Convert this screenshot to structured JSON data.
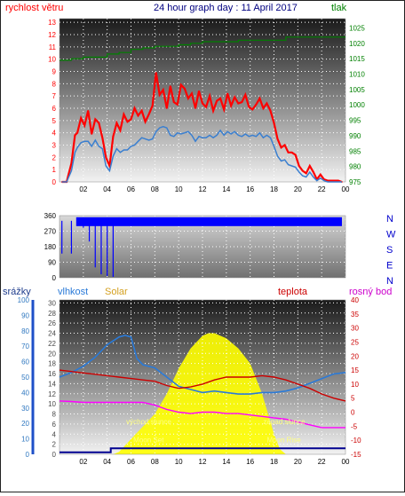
{
  "colors": {
    "wind": "#ff0000",
    "gust": "#3a7fd0",
    "pressure": "#008000",
    "direction": "#0000ff",
    "rain": "#1e50c8",
    "humidity": "#2a7ad8",
    "solar": "#ffff00",
    "temp": "#cc0000",
    "dew": "#ff00ff",
    "moon": "#000090",
    "axis_wind": "#ff0000",
    "axis_press": "#008000",
    "title": "#000080",
    "axis_rain": "#3078c0",
    "axis_solar": "#4a4a4a",
    "axis_temp": "#cc0000",
    "axis_dir": "#0000cc",
    "grid": "#ffffff"
  },
  "chart_data": [
    {
      "type": "line",
      "title": "24 hour graph day : 11 April 2017",
      "left_label": "rychlost větru",
      "right_label": "tlak",
      "xticks": [
        "02",
        "04",
        "06",
        "08",
        "10",
        "12",
        "14",
        "16",
        "18",
        "20",
        "22",
        "00"
      ],
      "yticks_left": [
        "0",
        "1",
        "2",
        "3",
        "4",
        "5",
        "6",
        "7",
        "8",
        "9",
        "10",
        "11",
        "12",
        "13"
      ],
      "yticks_right": [
        "975",
        "980",
        "985",
        "990",
        "995",
        "1000",
        "1005",
        "1010",
        "1015",
        "1020",
        "1025"
      ],
      "xlim": [
        0,
        24
      ],
      "ylim_left": [
        0,
        13.3
      ],
      "ylim_right": [
        975,
        1028
      ],
      "grid": true,
      "series": [
        {
          "name": "rychlost větru",
          "axis": "left",
          "x": [
            0.2,
            0.6,
            1.0,
            1.3,
            1.5,
            1.8,
            2.1,
            2.4,
            2.7,
            3.0,
            3.3,
            3.6,
            3.9,
            4.2,
            4.5,
            4.8,
            5.1,
            5.4,
            5.7,
            6.0,
            6.3,
            6.6,
            6.9,
            7.2,
            7.5,
            7.8,
            8.1,
            8.4,
            8.7,
            9.0,
            9.3,
            9.6,
            9.9,
            10.2,
            10.5,
            10.8,
            11.1,
            11.4,
            11.7,
            12.0,
            12.3,
            12.6,
            12.9,
            13.2,
            13.5,
            13.8,
            14.1,
            14.4,
            14.7,
            15.0,
            15.3,
            15.6,
            15.9,
            16.2,
            16.5,
            16.8,
            17.1,
            17.4,
            17.7,
            18.0,
            18.3,
            18.6,
            18.9,
            19.2,
            19.5,
            19.8,
            20.1,
            20.4,
            20.7,
            21.0,
            21.3,
            21.6,
            21.9,
            22.2,
            22.5,
            22.8,
            23.1,
            23.4,
            23.7
          ],
          "y": [
            0,
            0,
            1.5,
            3.8,
            4.0,
            5.2,
            4.6,
            5.8,
            3.9,
            5.1,
            4.8,
            3.6,
            2.0,
            1.3,
            3.7,
            4.8,
            4.2,
            5.5,
            4.9,
            5.1,
            6.0,
            5.4,
            5.8,
            4.9,
            5.5,
            6.2,
            8.9,
            7.1,
            7.5,
            6.0,
            7.8,
            6.5,
            6.3,
            7.9,
            7.6,
            6.8,
            7.2,
            6.0,
            7.4,
            6.4,
            6.1,
            7.0,
            5.8,
            6.6,
            6.8,
            5.9,
            7.2,
            6.2,
            6.9,
            6.4,
            6.5,
            7.1,
            6.1,
            5.9,
            6.3,
            6.8,
            6.0,
            6.4,
            5.8,
            4.8,
            3.5,
            2.8,
            3.0,
            2.4,
            2.4,
            2.2,
            1.3,
            0.9,
            0.7,
            1.3,
            0.8,
            0.2,
            0.6,
            0.2,
            0.1,
            0.1,
            0.1,
            0.1,
            0
          ]
        },
        {
          "name": "",
          "axis": "left",
          "x": [
            0.2,
            0.6,
            1.0,
            1.3,
            1.5,
            1.8,
            2.1,
            2.4,
            2.7,
            3.0,
            3.3,
            3.6,
            3.9,
            4.2,
            4.5,
            4.8,
            5.1,
            5.4,
            5.7,
            6.0,
            6.3,
            6.6,
            6.9,
            7.2,
            7.5,
            7.8,
            8.1,
            8.4,
            8.7,
            9.0,
            9.3,
            9.6,
            9.9,
            10.2,
            10.5,
            10.8,
            11.1,
            11.4,
            11.7,
            12.0,
            12.3,
            12.6,
            12.9,
            13.2,
            13.5,
            13.8,
            14.1,
            14.4,
            14.7,
            15.0,
            15.3,
            15.6,
            15.9,
            16.2,
            16.5,
            16.8,
            17.1,
            17.4,
            17.7,
            18.0,
            18.3,
            18.6,
            18.9,
            19.2,
            19.5,
            19.8,
            20.1,
            20.4,
            20.7,
            21.0,
            21.3,
            21.6,
            21.9,
            22.2,
            22.5,
            22.8,
            23.1,
            23.4,
            23.7
          ],
          "y": [
            0,
            0,
            0.9,
            2.4,
            2.8,
            3.2,
            3.3,
            3.3,
            2.9,
            3.4,
            2.9,
            2.7,
            1.3,
            0.9,
            2.1,
            2.7,
            2.4,
            2.6,
            2.6,
            2.9,
            3.0,
            3.3,
            3.6,
            3.5,
            3.4,
            3.5,
            4.1,
            4.4,
            4.5,
            4.4,
            3.8,
            3.7,
            4.0,
            3.9,
            4.0,
            4.1,
            3.8,
            3.3,
            3.7,
            3.6,
            3.6,
            3.8,
            3.6,
            3.8,
            4.2,
            3.8,
            4.1,
            3.9,
            4.1,
            3.8,
            3.7,
            3.9,
            3.7,
            3.8,
            3.7,
            4.0,
            3.6,
            3.8,
            3.6,
            2.9,
            2.1,
            1.7,
            1.8,
            1.4,
            1.3,
            1.2,
            0.8,
            0.5,
            0.4,
            0.8,
            0.4,
            0.1,
            0.3,
            0.1,
            0,
            0,
            0,
            0,
            0
          ]
        },
        {
          "name": "tlak",
          "axis": "right",
          "x": [
            0,
            1,
            2,
            3,
            4,
            5,
            6,
            7,
            8,
            9,
            10,
            11,
            12,
            13,
            14,
            15,
            16,
            17,
            18,
            19,
            20,
            21,
            22,
            23,
            24
          ],
          "y": [
            1014.5,
            1015,
            1015.5,
            1015.5,
            1016.5,
            1017,
            1018,
            1018.5,
            1019,
            1019,
            1019.5,
            1020,
            1020.5,
            1020.5,
            1020.5,
            1021,
            1021,
            1021,
            1021,
            1022,
            1022,
            1022,
            1022,
            1022,
            1022
          ]
        }
      ]
    },
    {
      "type": "scatter",
      "xticks": [
        "02",
        "04",
        "06",
        "08",
        "10",
        "12",
        "14",
        "16",
        "18",
        "20",
        "22",
        "00"
      ],
      "yticks": [
        "0",
        "90",
        "180",
        "270",
        "360"
      ],
      "right_labels": [
        "N",
        "W",
        "S",
        "E",
        "N"
      ],
      "xlim": [
        0,
        24
      ],
      "ylim": [
        0,
        360
      ],
      "grid": true,
      "series": [
        {
          "name": "",
          "x": [
            0.2,
            1.0,
            1.5,
            2.0,
            2.5,
            3.0,
            3.5,
            4.0,
            4.5,
            5.0,
            5.5,
            6.0,
            6.5,
            7.0,
            7.5,
            8.0,
            8.5,
            9.0,
            9.5,
            10.0,
            10.5,
            11.0,
            11.5,
            12.0,
            12.5,
            13.0,
            13.5,
            14.0,
            14.5,
            15.0,
            15.5,
            16.0,
            16.5,
            17.0,
            17.5,
            18.0,
            18.5,
            19.0,
            19.5,
            20.0,
            20.5,
            21.0,
            21.5,
            22.0,
            22.5,
            23.0,
            23.5
          ],
          "y": [
            140,
            140,
            320,
            290,
            210,
            60,
            20,
            10,
            5,
            350,
            330,
            340,
            335,
            330,
            320,
            325,
            330,
            330,
            325,
            320,
            330,
            325,
            320,
            330,
            335,
            330,
            330,
            335,
            325,
            330,
            320,
            330,
            325,
            330,
            340,
            330,
            320,
            335,
            330,
            330,
            330,
            325,
            330,
            330,
            335,
            330,
            330
          ]
        }
      ]
    },
    {
      "type": "line",
      "labels": [
        "srážky",
        "vlhkost",
        "Solar",
        "teplota",
        "rosný bod"
      ],
      "xticks": [
        "02",
        "04",
        "06",
        "08",
        "10",
        "12",
        "14",
        "16",
        "18",
        "20",
        "22",
        "00"
      ],
      "yticks_rain": [
        "0",
        "10",
        "20",
        "30",
        "40",
        "50",
        "60",
        "70",
        "80",
        "90",
        "100"
      ],
      "yticks_solar": [
        "0",
        "2",
        "4",
        "6",
        "8",
        "10",
        "12",
        "14",
        "16",
        "18",
        "20",
        "22",
        "24",
        "26",
        "28",
        "30"
      ],
      "yticks_temp": [
        "-15",
        "-10",
        "-5",
        "0",
        "5",
        "10",
        "15",
        "20",
        "25",
        "30",
        "35",
        "40"
      ],
      "xlim": [
        0,
        24
      ],
      "ylim_humidity": [
        0,
        100
      ],
      "ylim_temp": [
        -15,
        40
      ],
      "grid": true,
      "annotations": [
        "východ slunce",
        "Moon Set",
        "západ slunce",
        "Moon Rise"
      ],
      "series": [
        {
          "name": "vlhkost",
          "axis": "humidity",
          "x": [
            0,
            1,
            2,
            3,
            4,
            5,
            5.5,
            6,
            6.5,
            7,
            8,
            9,
            10,
            11,
            12,
            13,
            14,
            15,
            16,
            17,
            18,
            19,
            20,
            21,
            22,
            23,
            24
          ],
          "y": [
            50,
            53,
            57,
            63,
            71,
            76,
            77,
            76,
            62,
            58,
            56,
            50,
            44,
            42,
            40,
            41,
            40,
            39,
            39,
            40,
            40,
            41,
            43,
            46,
            49,
            52,
            53
          ]
        },
        {
          "name": "teplota",
          "axis": "temp",
          "x": [
            0,
            1,
            2,
            3,
            4,
            5,
            6,
            7,
            8,
            9,
            10,
            11,
            12,
            13,
            14,
            15,
            16,
            17,
            18,
            19,
            20,
            21,
            22,
            23,
            24
          ],
          "y": [
            15,
            14.5,
            14,
            13.5,
            13,
            12.5,
            12,
            11.5,
            11,
            9.5,
            8.5,
            9,
            10,
            11.5,
            12.5,
            12.5,
            12.5,
            13,
            12.5,
            11.5,
            10,
            8.5,
            6.5,
            5,
            4
          ]
        },
        {
          "name": "rosný bod",
          "axis": "temp",
          "x": [
            0,
            1,
            2,
            3,
            4,
            5,
            6,
            7,
            8,
            9,
            10,
            11,
            12,
            13,
            14,
            15,
            16,
            17,
            18,
            19,
            20,
            21,
            22,
            23,
            24
          ],
          "y": [
            4,
            3.8,
            3.5,
            3.5,
            3.5,
            3.5,
            3.5,
            3.5,
            2.5,
            1,
            0,
            -0.5,
            0,
            0,
            -0.5,
            -0.5,
            -1,
            -1.5,
            -2,
            -2.5,
            -3.5,
            -4.5,
            -5.5,
            -5.5,
            -5.5
          ]
        },
        {
          "name": "Solar",
          "axis": "solar",
          "x": [
            4.5,
            5,
            6,
            7,
            8,
            9,
            10,
            11,
            12,
            12.5,
            13,
            13.5,
            14,
            15,
            16,
            17,
            17.5,
            18,
            18.5,
            19
          ],
          "y": [
            0,
            0.5,
            3,
            5.5,
            8,
            12,
            17,
            21,
            23.5,
            24,
            24,
            23.5,
            23,
            21,
            18,
            12,
            8,
            4,
            1,
            0
          ]
        },
        {
          "name": "srážky",
          "axis": "humidity",
          "x": [
            0,
            24
          ],
          "y": [
            0,
            0
          ]
        }
      ]
    }
  ]
}
